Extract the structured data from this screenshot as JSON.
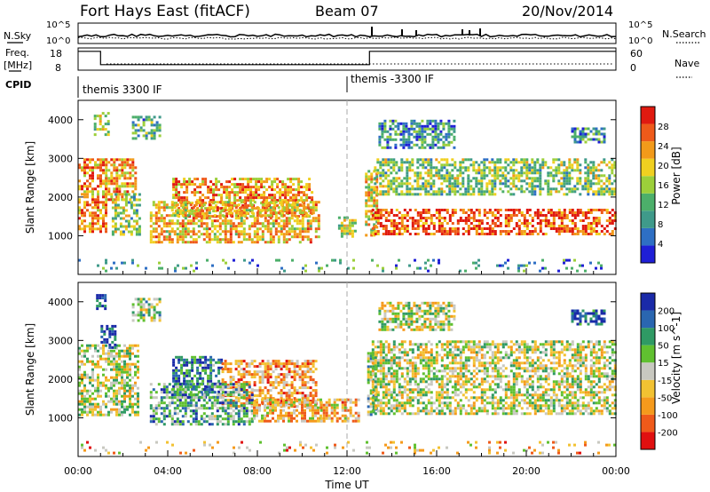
{
  "header": {
    "station": "Fort Hays East (fitACF)",
    "beam": "Beam 07",
    "date": "20/Nov/2014"
  },
  "top_panels": {
    "nsky_label": "N.Sky",
    "nsearch_label": "N.Search",
    "nsky_ticks": [
      "10^5",
      "10^0"
    ],
    "nsearch_ticks": [
      "10^5",
      "10^0"
    ],
    "freq_label_line1": "Freq.",
    "freq_label_line2": "[MHz]",
    "freq_ticks": [
      "18",
      "8"
    ],
    "nave_label": "Nave",
    "nave_ticks": [
      "60",
      "0"
    ],
    "cpid_label": "CPID",
    "cpid_segments": [
      {
        "label": "themis 3300 IF",
        "start_hour": 0,
        "end_hour": 12
      },
      {
        "label": "themis -3300 IF",
        "start_hour": 12,
        "end_hour": 24
      }
    ],
    "freq_trace": [
      {
        "hour": 0,
        "mhz": 16.5
      },
      {
        "hour": 1.0,
        "mhz": 16.5
      },
      {
        "hour": 1.0,
        "mhz": 10.5
      },
      {
        "hour": 13.0,
        "mhz": 10.5
      },
      {
        "hour": 13.0,
        "mhz": 16.5
      },
      {
        "hour": 24,
        "mhz": 16.5
      }
    ]
  },
  "colors": {
    "power_scale": [
      "#1f1fd6",
      "#2e6fc4",
      "#3f9a8a",
      "#4caf6a",
      "#9ccf3a",
      "#f0d020",
      "#f29a1a",
      "#ee5a1a",
      "#e01a10"
    ],
    "velocity_scale": [
      "#e01010",
      "#ef5a1a",
      "#f59a1c",
      "#f2c232",
      "#c8c8c0",
      "#60c030",
      "#2f9a64",
      "#2a66b0",
      "#1a2aa8"
    ]
  },
  "chart_data": [
    {
      "type": "heatmap",
      "name": "power",
      "xlabel": "",
      "ylabel": "Slant Range [km]",
      "xlim": [
        0,
        24
      ],
      "ylim": [
        0,
        4500
      ],
      "yticks": [
        1000,
        2000,
        3000,
        4000
      ],
      "colorbar_label": "Power [dB]",
      "colorbar_ticks": [
        "28",
        "24",
        "20",
        "16",
        "12",
        "8",
        "4"
      ],
      "colorbar_range": [
        0,
        30
      ],
      "grid": false,
      "regions": [
        {
          "t0": 0.0,
          "t1": 1.3,
          "r0": 1100,
          "r1": 3000,
          "level": 0.75
        },
        {
          "t0": 1.2,
          "t1": 2.6,
          "r0": 1900,
          "r1": 3000,
          "level": 0.7
        },
        {
          "t0": 1.5,
          "t1": 2.8,
          "r0": 1000,
          "r1": 2100,
          "level": 0.45
        },
        {
          "t0": 0.7,
          "t1": 1.3,
          "r0": 3600,
          "r1": 4200,
          "level": 0.5
        },
        {
          "t0": 2.4,
          "t1": 3.6,
          "r0": 3500,
          "r1": 4100,
          "level": 0.35
        },
        {
          "t0": 4.2,
          "t1": 10.4,
          "r0": 1500,
          "r1": 2500,
          "level": 0.72
        },
        {
          "t0": 3.2,
          "t1": 10.8,
          "r0": 800,
          "r1": 1900,
          "level": 0.65
        },
        {
          "t0": 11.6,
          "t1": 12.4,
          "r0": 1000,
          "r1": 1500,
          "level": 0.55
        },
        {
          "t0": 12.8,
          "t1": 13.3,
          "r0": 1000,
          "r1": 2700,
          "level": 0.6
        },
        {
          "t0": 13.1,
          "t1": 24.0,
          "r0": 1050,
          "r1": 1700,
          "level": 0.85
        },
        {
          "t0": 13.2,
          "t1": 24.0,
          "r0": 2100,
          "r1": 3000,
          "level": 0.45
        },
        {
          "t0": 13.4,
          "t1": 16.8,
          "r0": 3300,
          "r1": 4000,
          "level": 0.3
        },
        {
          "t0": 22.0,
          "t1": 23.5,
          "r0": 3400,
          "r1": 3800,
          "level": 0.3
        },
        {
          "t0": 0.0,
          "t1": 24.0,
          "r0": 120,
          "r1": 400,
          "level": 0.3
        }
      ]
    },
    {
      "type": "heatmap",
      "name": "velocity",
      "xlabel": "Time UT",
      "ylabel": "Slant Range [km]",
      "xlim": [
        0,
        24
      ],
      "ylim": [
        0,
        4500
      ],
      "xticks": [
        "00:00",
        "04:00",
        "08:00",
        "12:00",
        "16:00",
        "20:00",
        "00:00"
      ],
      "yticks": [
        1000,
        2000,
        3000,
        4000
      ],
      "colorbar_label": "Velocity [m s^-1]",
      "colorbar_ticks": [
        "200",
        "100",
        "50",
        "15",
        "-15",
        "-50",
        "-100",
        "-200"
      ],
      "colorbar_range": [
        -250,
        250
      ],
      "grid": false,
      "regions": [
        {
          "t0": 0.0,
          "t1": 2.7,
          "r0": 1100,
          "r1": 2900,
          "level": 0.5
        },
        {
          "t0": 1.0,
          "t1": 1.6,
          "r0": 2800,
          "r1": 3400,
          "level": 0.95
        },
        {
          "t0": 0.8,
          "t1": 1.2,
          "r0": 3800,
          "r1": 4200,
          "level": 0.9
        },
        {
          "t0": 2.4,
          "t1": 3.6,
          "r0": 3500,
          "r1": 4100,
          "level": 0.55
        },
        {
          "t0": 4.2,
          "t1": 6.4,
          "r0": 1500,
          "r1": 2600,
          "level": 0.78
        },
        {
          "t0": 6.4,
          "t1": 10.6,
          "r0": 1300,
          "r1": 2500,
          "level": 0.3
        },
        {
          "t0": 3.2,
          "t1": 7.8,
          "r0": 800,
          "r1": 1900,
          "level": 0.68
        },
        {
          "t0": 7.8,
          "t1": 10.8,
          "r0": 900,
          "r1": 1500,
          "level": 0.4
        },
        {
          "t0": 10.8,
          "t1": 12.5,
          "r0": 900,
          "r1": 1500,
          "level": 0.35
        },
        {
          "t0": 12.9,
          "t1": 13.3,
          "r0": 1100,
          "r1": 2700,
          "level": 0.6
        },
        {
          "t0": 13.1,
          "t1": 24.0,
          "r0": 1100,
          "r1": 3000,
          "level": 0.5
        },
        {
          "t0": 13.4,
          "t1": 16.8,
          "r0": 3300,
          "r1": 4000,
          "level": 0.5
        },
        {
          "t0": 22.0,
          "t1": 23.5,
          "r0": 3400,
          "r1": 3800,
          "level": 0.85
        },
        {
          "t0": 0.0,
          "t1": 24.0,
          "r0": 120,
          "r1": 400,
          "level": 0.35
        }
      ]
    }
  ]
}
